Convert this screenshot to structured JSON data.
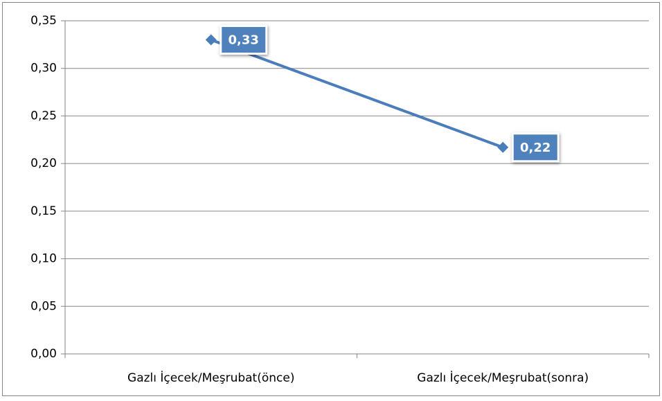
{
  "chart_data": {
    "type": "line",
    "categories": [
      "Gazlı İçecek/Meşrubat(önce)",
      "Gazlı İçecek/Meşrubat(sonra)"
    ],
    "values": [
      0.33,
      0.217
    ],
    "value_labels": [
      "0,33",
      "0,22"
    ],
    "color": "#4a7ebb",
    "ylim": [
      0,
      0.35
    ],
    "yticks": [
      {
        "value": 0,
        "label": "0,00"
      },
      {
        "value": 0.05,
        "label": "0,05"
      },
      {
        "value": 0.1,
        "label": "0,10"
      },
      {
        "value": 0.15,
        "label": "0,15"
      },
      {
        "value": 0.2,
        "label": "0,20"
      },
      {
        "value": 0.25,
        "label": "0,25"
      },
      {
        "value": 0.3,
        "label": "0,30"
      },
      {
        "value": 0.35,
        "label": "0,35"
      }
    ],
    "grid": true
  }
}
